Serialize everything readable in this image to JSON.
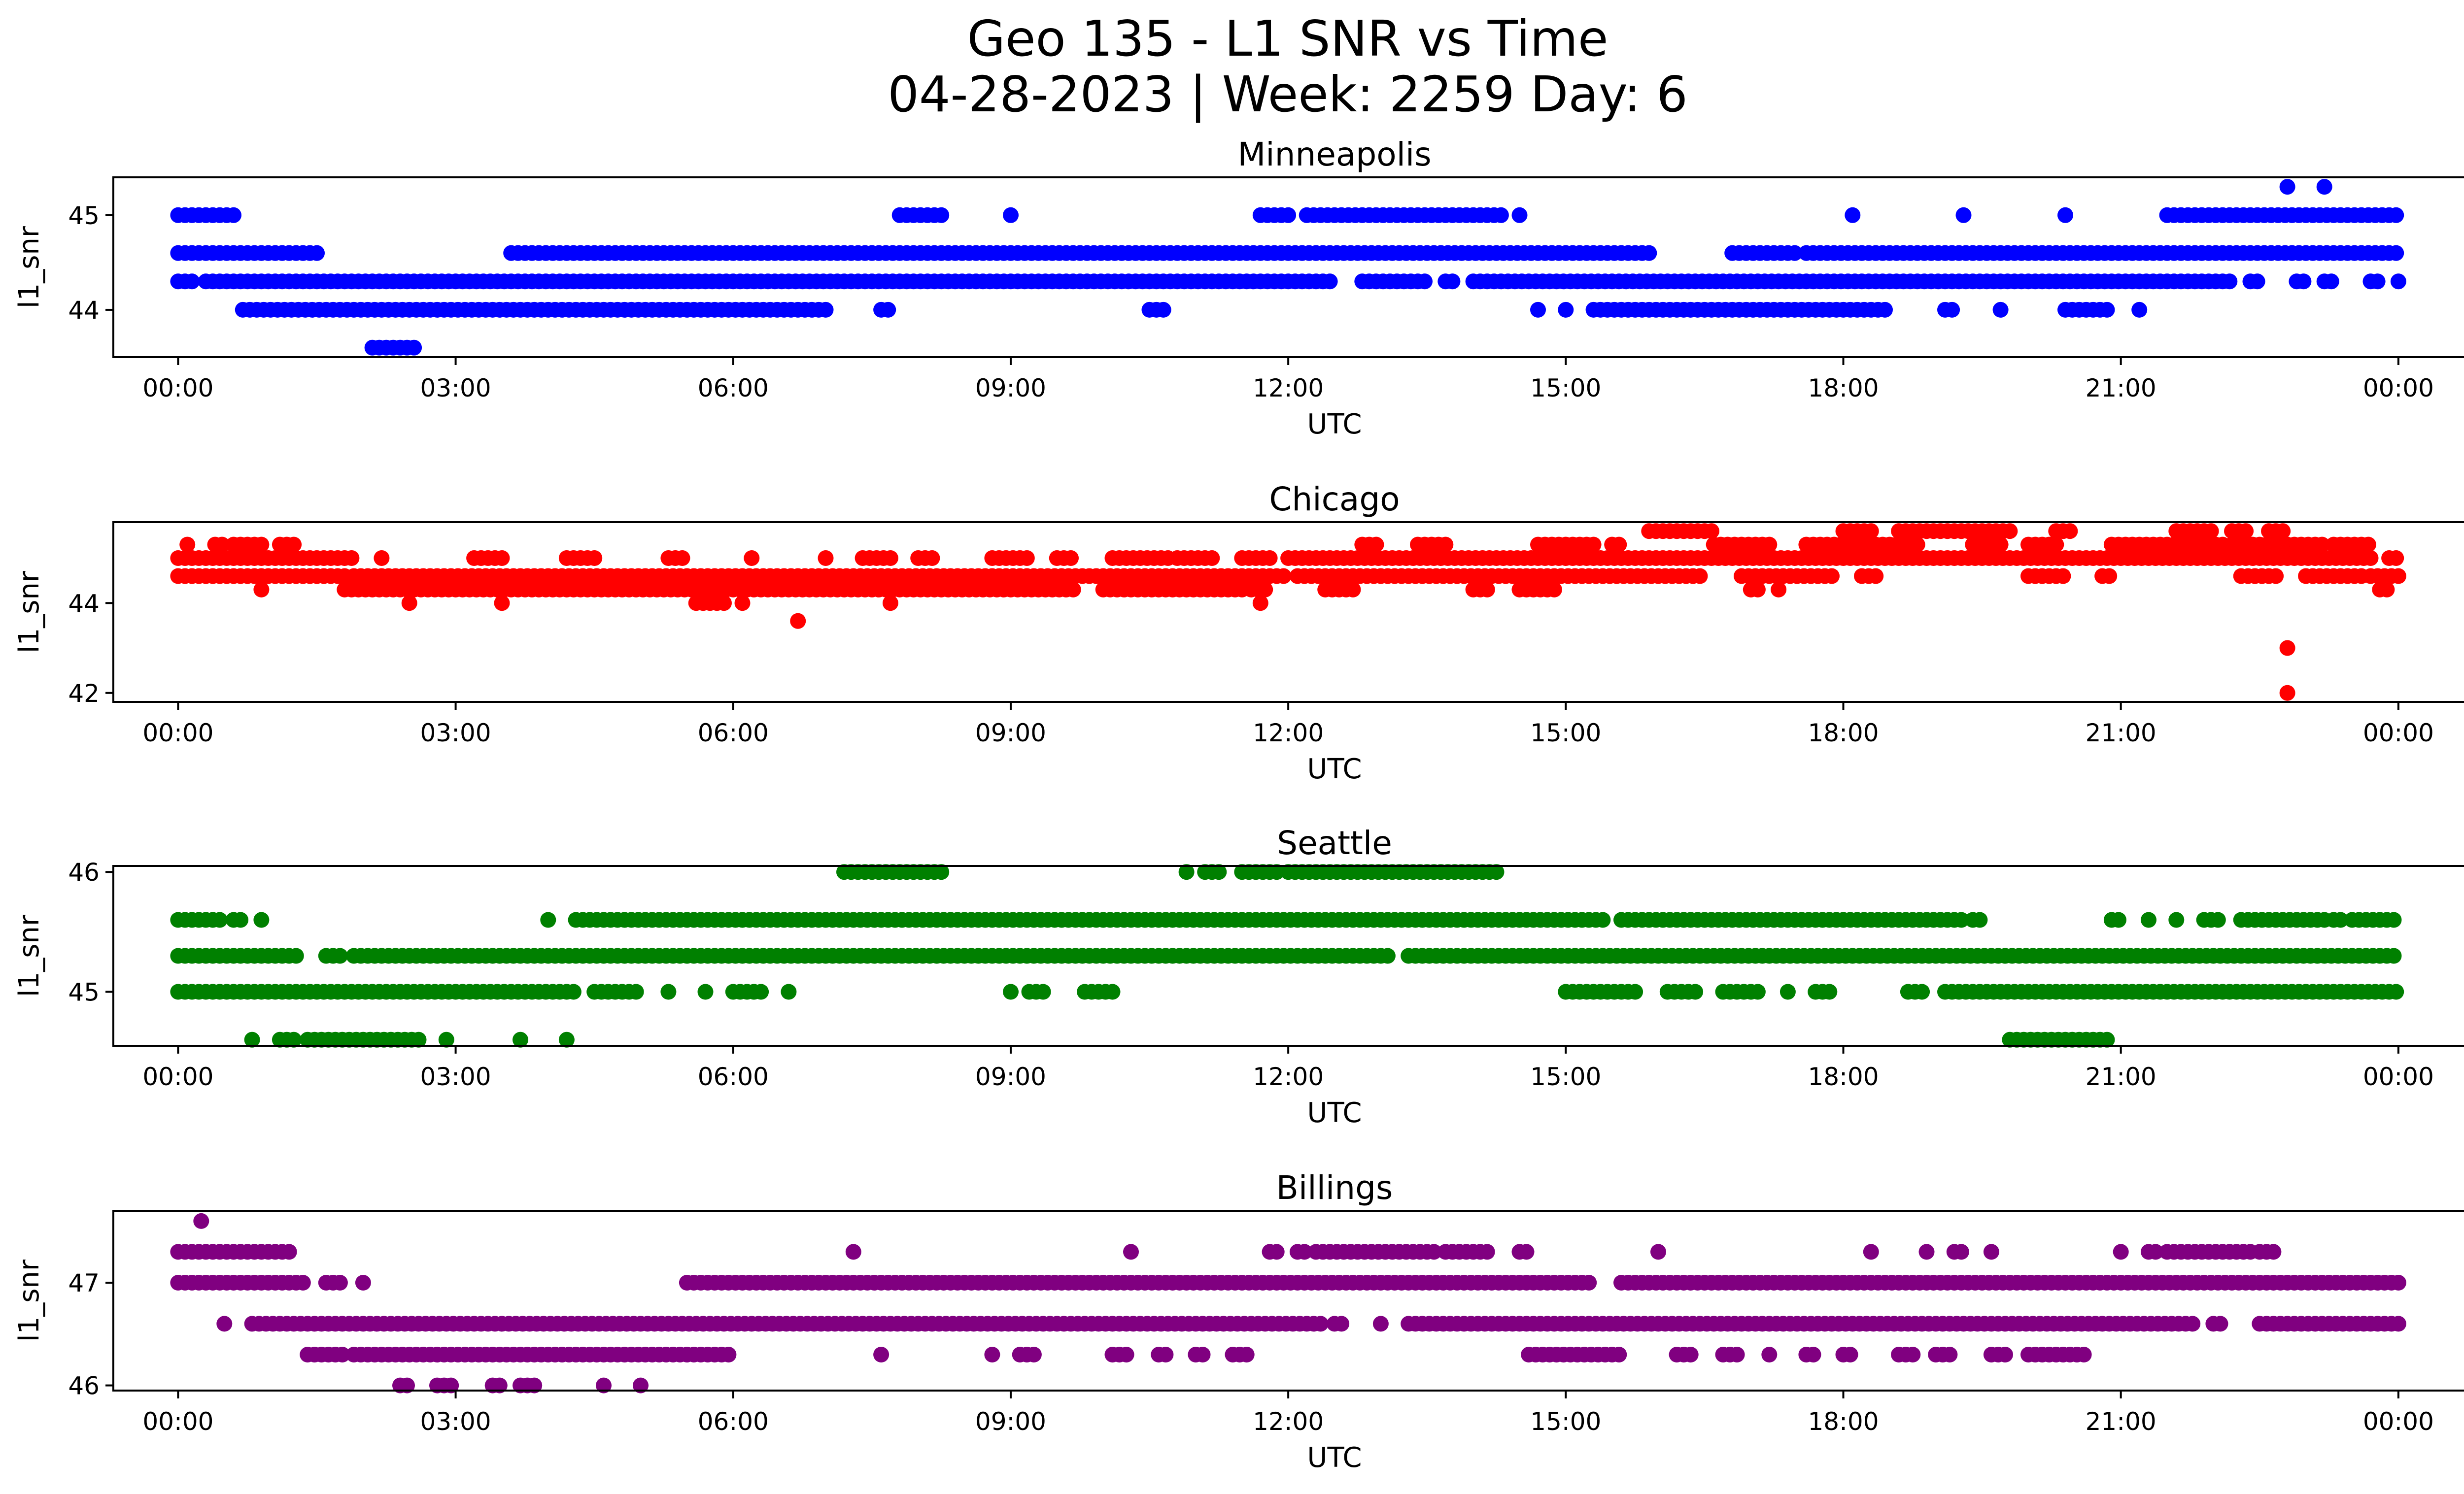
{
  "title_line1": "Geo 135 - L1 SNR vs Time",
  "title_line2": "04-28-2023 | Week: 2259 Day: 6",
  "chart_data": [
    {
      "type": "scatter",
      "title": "Minneapolis",
      "xlabel": "UTC",
      "ylabel": "l1_snr",
      "color": "#0000ff",
      "xlim": [
        -0.7,
        25.7
      ],
      "ylim": [
        43.5,
        45.4
      ],
      "xticks": [
        "00:00",
        "03:00",
        "06:00",
        "09:00",
        "12:00",
        "15:00",
        "18:00",
        "21:00",
        "00:00"
      ],
      "yticks": [
        44,
        45
      ],
      "series": [
        {
          "y": 45.0,
          "segments": [
            [
              0.0,
              0.6
            ],
            [
              7.8,
              8.3
            ],
            [
              9.0,
              9.0
            ],
            [
              11.7,
              12.0
            ],
            [
              12.2,
              14.3
            ],
            [
              14.5,
              14.5
            ],
            [
              18.1,
              18.1
            ],
            [
              19.3,
              19.3
            ],
            [
              20.4,
              20.4
            ],
            [
              21.5,
              24.0
            ]
          ]
        },
        {
          "y": 44.6,
          "segments": [
            [
              0.0,
              1.5
            ],
            [
              3.6,
              15.9
            ],
            [
              16.8,
              17.5
            ],
            [
              17.6,
              24.0
            ]
          ]
        },
        {
          "y": 44.3,
          "segments": [
            [
              0.0,
              0.2
            ],
            [
              0.3,
              12.5
            ],
            [
              12.8,
              13.5
            ],
            [
              13.7,
              13.8
            ],
            [
              14.0,
              22.2
            ],
            [
              22.4,
              22.5
            ],
            [
              22.9,
              23.0
            ],
            [
              23.2,
              23.3
            ],
            [
              23.7,
              23.8
            ],
            [
              24.0,
              24.0
            ]
          ]
        },
        {
          "y": 44.0,
          "segments": [
            [
              0.7,
              7.0
            ],
            [
              7.6,
              7.7
            ],
            [
              10.5,
              10.7
            ],
            [
              14.7,
              14.7
            ],
            [
              15.0,
              15.0
            ],
            [
              15.3,
              18.5
            ],
            [
              19.1,
              19.2
            ],
            [
              19.7,
              19.7
            ],
            [
              20.4,
              20.9
            ],
            [
              21.2,
              21.2
            ]
          ]
        },
        {
          "y": 43.6,
          "segments": [
            [
              2.1,
              2.6
            ]
          ]
        },
        {
          "y": 45.3,
          "segments": [
            [
              22.8,
              22.8
            ],
            [
              23.2,
              23.2
            ]
          ]
        }
      ]
    },
    {
      "type": "scatter",
      "title": "Chicago",
      "xlabel": "UTC",
      "ylabel": "l1_snr",
      "color": "#ff0000",
      "xlim": [
        -0.7,
        25.7
      ],
      "ylim": [
        41.8,
        45.8
      ],
      "xticks": [
        "00:00",
        "03:00",
        "06:00",
        "09:00",
        "12:00",
        "15:00",
        "18:00",
        "21:00",
        "00:00"
      ],
      "yticks": [
        42,
        44
      ],
      "series": [
        {
          "y": 45.3,
          "segments": [
            [
              0.1,
              0.1
            ],
            [
              0.4,
              0.5
            ],
            [
              0.6,
              0.9
            ],
            [
              1.1,
              1.3
            ],
            [
              12.8,
              13.0
            ],
            [
              13.4,
              13.7
            ],
            [
              14.7,
              15.3
            ],
            [
              15.5,
              15.6
            ],
            [
              16.6,
              17.2
            ],
            [
              17.6,
              18.8
            ],
            [
              19.4,
              19.7
            ],
            [
              20.0,
              20.3
            ],
            [
              20.9,
              22.1
            ],
            [
              22.2,
              23.2
            ],
            [
              23.3,
              23.7
            ]
          ]
        },
        {
          "y": 45.6,
          "segments": [
            [
              15.9,
              16.6
            ],
            [
              18.0,
              18.3
            ],
            [
              18.6,
              19.8
            ],
            [
              20.3,
              20.5
            ],
            [
              21.6,
              22.0
            ],
            [
              22.2,
              22.4
            ],
            [
              22.6,
              22.8
            ]
          ]
        },
        {
          "y": 45.0,
          "segments": [
            [
              0.0,
              1.9
            ],
            [
              2.2,
              2.2
            ],
            [
              3.2,
              3.5
            ],
            [
              4.2,
              4.5
            ],
            [
              5.3,
              5.5
            ],
            [
              6.2,
              6.2
            ],
            [
              7.0,
              7.0
            ],
            [
              7.4,
              7.7
            ],
            [
              8.0,
              8.2
            ],
            [
              8.8,
              9.2
            ],
            [
              9.5,
              9.7
            ],
            [
              10.1,
              10.7
            ],
            [
              10.8,
              11.2
            ],
            [
              11.5,
              11.8
            ],
            [
              12.0,
              23.7
            ],
            [
              23.9,
              24.0
            ]
          ]
        },
        {
          "y": 44.6,
          "segments": [
            [
              0.0,
              1.8
            ],
            [
              1.9,
              12.0
            ],
            [
              12.1,
              16.5
            ],
            [
              16.9,
              17.9
            ],
            [
              18.2,
              18.4
            ],
            [
              20.0,
              20.4
            ],
            [
              20.8,
              20.9
            ],
            [
              22.3,
              22.7
            ],
            [
              23.0,
              23.6
            ],
            [
              23.7,
              24.0
            ]
          ]
        },
        {
          "y": 44.3,
          "segments": [
            [
              0.9,
              0.9
            ],
            [
              1.8,
              9.7
            ],
            [
              10.0,
              11.5
            ],
            [
              11.6,
              11.8
            ],
            [
              12.4,
              12.7
            ],
            [
              14.0,
              14.2
            ],
            [
              14.5,
              14.9
            ],
            [
              17.0,
              17.1
            ],
            [
              17.3,
              17.3
            ],
            [
              23.8,
              23.9
            ]
          ]
        },
        {
          "y": 44.0,
          "segments": [
            [
              2.5,
              2.5
            ],
            [
              3.5,
              3.5
            ],
            [
              5.6,
              5.9
            ],
            [
              6.1,
              6.1
            ],
            [
              7.7,
              7.7
            ],
            [
              11.7,
              11.7
            ]
          ]
        },
        {
          "y": 43.6,
          "segments": [
            [
              6.7,
              6.7
            ]
          ]
        },
        {
          "y": 43.0,
          "segments": [
            [
              22.8,
              22.8
            ]
          ]
        },
        {
          "y": 42.0,
          "segments": [
            [
              22.8,
              22.8
            ]
          ]
        }
      ]
    },
    {
      "type": "scatter",
      "title": "Seattle",
      "xlabel": "UTC",
      "ylabel": "l1_snr",
      "color": "#008000",
      "xlim": [
        -0.7,
        25.7
      ],
      "ylim": [
        44.55,
        46.05
      ],
      "xticks": [
        "00:00",
        "03:00",
        "06:00",
        "09:00",
        "12:00",
        "15:00",
        "18:00",
        "21:00",
        "00:00"
      ],
      "yticks": [
        45,
        46
      ],
      "series": [
        {
          "y": 46.0,
          "segments": [
            [
              7.2,
              8.3
            ],
            [
              10.9,
              10.9
            ],
            [
              11.1,
              11.3
            ],
            [
              11.5,
              11.9
            ],
            [
              12.0,
              14.3
            ]
          ]
        },
        {
          "y": 45.6,
          "segments": [
            [
              0.0,
              0.5
            ],
            [
              0.6,
              0.7
            ],
            [
              0.9,
              0.9
            ],
            [
              4.0,
              4.0
            ],
            [
              4.3,
              15.4
            ],
            [
              15.6,
              19.3
            ],
            [
              19.4,
              19.5
            ],
            [
              20.9,
              21.0
            ],
            [
              21.3,
              21.3
            ],
            [
              21.6,
              21.6
            ],
            [
              21.9,
              22.1
            ],
            [
              22.3,
              23.2
            ],
            [
              23.3,
              23.4
            ],
            [
              23.5,
              24.0
            ]
          ]
        },
        {
          "y": 45.3,
          "segments": [
            [
              0.0,
              1.3
            ],
            [
              1.6,
              1.8
            ],
            [
              1.9,
              13.1
            ],
            [
              13.3,
              24.0
            ]
          ]
        },
        {
          "y": 45.0,
          "segments": [
            [
              0.0,
              4.3
            ],
            [
              4.5,
              5.0
            ],
            [
              5.3,
              5.3
            ],
            [
              5.7,
              5.7
            ],
            [
              6.0,
              6.3
            ],
            [
              6.6,
              6.6
            ],
            [
              9.0,
              9.0
            ],
            [
              9.2,
              9.4
            ],
            [
              9.8,
              10.1
            ],
            [
              15.0,
              15.8
            ],
            [
              16.1,
              16.4
            ],
            [
              16.7,
              17.1
            ],
            [
              17.4,
              17.4
            ],
            [
              17.7,
              17.9
            ],
            [
              18.7,
              18.9
            ],
            [
              19.1,
              24.0
            ]
          ]
        },
        {
          "y": 44.6,
          "segments": [
            [
              0.8,
              0.8
            ],
            [
              1.1,
              1.3
            ],
            [
              1.4,
              2.6
            ],
            [
              2.9,
              2.9
            ],
            [
              3.7,
              3.7
            ],
            [
              4.2,
              4.2
            ],
            [
              19.8,
              20.9
            ]
          ]
        }
      ]
    },
    {
      "type": "scatter",
      "title": "Billings",
      "xlabel": "UTC",
      "ylabel": "l1_snr",
      "color": "#800080",
      "xlim": [
        -0.7,
        25.7
      ],
      "ylim": [
        45.95,
        47.7
      ],
      "xticks": [
        "00:00",
        "03:00",
        "06:00",
        "09:00",
        "12:00",
        "15:00",
        "18:00",
        "21:00",
        "00:00"
      ],
      "yticks": [
        46,
        47
      ],
      "series": [
        {
          "y": 47.6,
          "segments": [
            [
              0.25,
              0.25
            ]
          ]
        },
        {
          "y": 47.3,
          "segments": [
            [
              0.0,
              1.2
            ],
            [
              7.3,
              7.3
            ],
            [
              10.3,
              10.3
            ],
            [
              11.8,
              11.9
            ],
            [
              12.1,
              12.2
            ],
            [
              12.3,
              13.6
            ],
            [
              13.7,
              14.2
            ],
            [
              14.5,
              14.6
            ],
            [
              16.0,
              16.0
            ],
            [
              18.3,
              18.3
            ],
            [
              18.9,
              18.9
            ],
            [
              19.2,
              19.3
            ],
            [
              19.6,
              19.6
            ],
            [
              21.0,
              21.0
            ],
            [
              21.3,
              21.4
            ],
            [
              21.5,
              22.4
            ],
            [
              22.5,
              22.7
            ]
          ]
        },
        {
          "y": 47.0,
          "segments": [
            [
              0.0,
              1.4
            ],
            [
              1.6,
              1.8
            ],
            [
              2.0,
              2.0
            ],
            [
              5.5,
              15.3
            ],
            [
              15.6,
              24.0
            ]
          ]
        },
        {
          "y": 46.6,
          "segments": [
            [
              0.5,
              0.5
            ],
            [
              0.8,
              12.4
            ],
            [
              12.5,
              12.6
            ],
            [
              13.0,
              13.0
            ],
            [
              13.3,
              21.8
            ],
            [
              22.0,
              22.1
            ],
            [
              22.5,
              24.0
            ]
          ]
        },
        {
          "y": 46.3,
          "segments": [
            [
              1.4,
              1.8
            ],
            [
              1.9,
              6.0
            ],
            [
              7.6,
              7.6
            ],
            [
              8.8,
              8.8
            ],
            [
              9.1,
              9.3
            ],
            [
              10.1,
              10.3
            ],
            [
              10.6,
              10.7
            ],
            [
              11.0,
              11.1
            ],
            [
              11.4,
              11.6
            ],
            [
              14.6,
              15.6
            ],
            [
              16.2,
              16.4
            ],
            [
              16.7,
              16.9
            ],
            [
              17.2,
              17.2
            ],
            [
              17.6,
              17.7
            ],
            [
              18.0,
              18.1
            ],
            [
              18.6,
              18.8
            ],
            [
              19.0,
              19.2
            ],
            [
              19.6,
              19.8
            ],
            [
              20.0,
              20.6
            ]
          ]
        },
        {
          "y": 46.0,
          "segments": [
            [
              2.4,
              2.5
            ],
            [
              2.8,
              3.0
            ],
            [
              3.4,
              3.5
            ],
            [
              3.7,
              3.9
            ],
            [
              4.6,
              4.6
            ],
            [
              5.0,
              5.0
            ]
          ]
        }
      ]
    }
  ]
}
